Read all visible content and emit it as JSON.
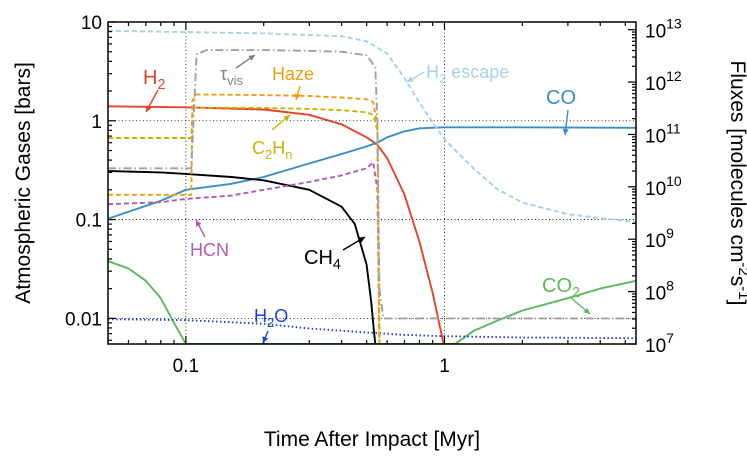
{
  "chart_data": {
    "type": "line",
    "xlabel": "Time After Impact [Myr]",
    "ylabel_left": "Atmospheric Gases [bars]",
    "ylabel_right": "Fluxes [molecules cm^-2 s^-1]",
    "x_scale": "log",
    "y_scale_left": "log",
    "y_scale_right": "log",
    "xlim": [
      0.05,
      5.5
    ],
    "ylim_left": [
      0.0055,
      10
    ],
    "ylim_right": [
      10000000.0,
      14000000000000.0
    ],
    "grid": "dotted at decades",
    "x_tick_labels": [
      "0.1",
      "1"
    ],
    "y_left_tick_labels": [
      "0.01",
      "0.1",
      "1",
      "10"
    ],
    "y_right_tick_labels": [
      "10^7",
      "10^8",
      "10^9",
      "10^10",
      "10^11",
      "10^12",
      "10^13"
    ],
    "series": [
      {
        "name": "H2",
        "label": "H₂",
        "axis": "left",
        "color": "#e8412a",
        "style": "solid",
        "x": [
          0.05,
          0.1,
          0.2,
          0.3,
          0.4,
          0.5,
          0.55,
          0.6,
          0.7,
          0.8,
          0.9,
          1.0
        ],
        "y": [
          1.4,
          1.37,
          1.3,
          1.15,
          0.92,
          0.68,
          0.57,
          0.42,
          0.18,
          0.06,
          0.018,
          0.005
        ]
      },
      {
        "name": "CO",
        "label": "CO",
        "axis": "left",
        "color": "#3b8dc4",
        "style": "solid",
        "x": [
          0.05,
          0.08,
          0.1,
          0.15,
          0.2,
          0.3,
          0.4,
          0.5,
          0.55,
          0.6,
          0.7,
          0.8,
          1.0,
          2.0,
          5.5
        ],
        "y": [
          0.102,
          0.155,
          0.2,
          0.23,
          0.27,
          0.37,
          0.46,
          0.55,
          0.6,
          0.68,
          0.78,
          0.84,
          0.86,
          0.86,
          0.85
        ]
      },
      {
        "name": "CH4",
        "label": "CH₄",
        "axis": "left",
        "color": "#000000",
        "style": "solid",
        "x": [
          0.05,
          0.08,
          0.1,
          0.15,
          0.2,
          0.3,
          0.4,
          0.45,
          0.5,
          0.52,
          0.535,
          0.54
        ],
        "y": [
          0.31,
          0.3,
          0.29,
          0.27,
          0.25,
          0.2,
          0.135,
          0.09,
          0.035,
          0.015,
          0.007,
          0.0055
        ]
      },
      {
        "name": "CO2",
        "label": "CO₂",
        "axis": "left",
        "color": "#5cb85c",
        "style": "solid",
        "x": [
          0.05,
          0.06,
          0.07,
          0.08,
          0.09,
          0.095,
          0.1,
          1.1,
          1.15,
          1.3,
          1.6,
          2.0,
          3.0,
          4.0,
          5.5
        ],
        "y": [
          0.038,
          0.032,
          0.024,
          0.016,
          0.009,
          0.007,
          0.0055,
          0.0055,
          0.006,
          0.0075,
          0.0095,
          0.012,
          0.016,
          0.02,
          0.024
        ]
      },
      {
        "name": "H2O",
        "label": "H₂O",
        "axis": "left",
        "color": "#1c3fd6",
        "style": "dotted",
        "x": [
          0.05,
          0.1,
          0.2,
          0.3,
          0.5,
          0.7,
          1.0,
          2.0,
          5.5
        ],
        "y": [
          0.0098,
          0.0096,
          0.0088,
          0.0079,
          0.0072,
          0.0068,
          0.0066,
          0.0064,
          0.0063
        ]
      },
      {
        "name": "HCN",
        "label": "HCN",
        "axis": "left",
        "color": "#b25ab8",
        "style": "dashed",
        "x": [
          0.05,
          0.08,
          0.1,
          0.15,
          0.2,
          0.3,
          0.4,
          0.5,
          0.53,
          0.55,
          0.56
        ],
        "y": [
          0.143,
          0.15,
          0.162,
          0.175,
          0.2,
          0.24,
          0.28,
          0.33,
          0.38,
          0.2,
          0.0055
        ]
      },
      {
        "name": "C2Hn",
        "label": "C₂Hₙ",
        "axis": "left",
        "color": "#c8b400",
        "style": "dashed",
        "x": [
          0.05,
          0.105,
          0.106,
          0.108,
          0.2,
          0.3,
          0.4,
          0.5,
          0.53,
          0.55,
          0.56
        ],
        "y": [
          0.67,
          0.67,
          1.2,
          1.36,
          1.35,
          1.32,
          1.28,
          1.22,
          1.15,
          0.8,
          0.0055
        ]
      },
      {
        "name": "Haze",
        "label": "Haze",
        "axis": "left",
        "color": "#f39c12",
        "style": "dashed",
        "x": [
          0.05,
          0.105,
          0.106,
          0.11,
          0.2,
          0.3,
          0.4,
          0.5,
          0.53,
          0.55,
          0.56
        ],
        "y": [
          0.178,
          0.178,
          1.6,
          1.85,
          1.82,
          1.78,
          1.72,
          1.65,
          1.55,
          0.9,
          0.0055
        ]
      },
      {
        "name": "tau_vis",
        "label": "τvis",
        "axis": "left",
        "color": "#a0a0a0",
        "style": "dashdot",
        "x": [
          0.05,
          0.105,
          0.11,
          0.12,
          0.2,
          0.3,
          0.4,
          0.5,
          0.54,
          0.55,
          0.56,
          0.58,
          5.5
        ],
        "y": [
          0.33,
          0.33,
          4.7,
          5.2,
          5.2,
          5.1,
          5.0,
          4.6,
          3.5,
          1.0,
          0.02,
          0.01,
          0.01
        ]
      },
      {
        "name": "H2 escape",
        "label": "H₂ escape",
        "axis": "right",
        "color": "#a8d0e8",
        "style": "dashed",
        "x": [
          0.05,
          0.2,
          0.4,
          0.5,
          0.6,
          0.7,
          0.8,
          1.0,
          1.3,
          1.6,
          2.0,
          3.0,
          5.5
        ],
        "y": [
          9500000000000.0,
          8500000000000.0,
          7500000000000.0,
          6000000000000.0,
          3500000000000.0,
          1200000000000.0,
          400000000000.0,
          80000000000.0,
          22000000000.0,
          9000000000.0,
          5000000000.0,
          3000000000.0,
          2100000000.0
        ]
      }
    ],
    "annotations": [
      {
        "id": "tau",
        "text": "τ",
        "sub": "vis",
        "color": "#808080"
      },
      {
        "id": "haze",
        "text": "Haze",
        "sub": "",
        "color": "#f39c12"
      },
      {
        "id": "h2esc",
        "text": "H",
        "sub": "2",
        "post": " escape",
        "color": "#a8d0e8"
      },
      {
        "id": "h2",
        "text": "H",
        "sub": "2",
        "color": "#e8412a"
      },
      {
        "id": "co",
        "text": "CO",
        "sub": "",
        "color": "#3b8dc4"
      },
      {
        "id": "c2hn",
        "text": "C",
        "sub": "2",
        "post": "H",
        "sub2": "n",
        "color": "#c8b400"
      },
      {
        "id": "ch4",
        "text": "CH",
        "sub": "4",
        "color": "#000000"
      },
      {
        "id": "hcn",
        "text": "HCN",
        "sub": "",
        "color": "#b25ab8"
      },
      {
        "id": "co2",
        "text": "CO",
        "sub": "2",
        "color": "#5cb85c"
      },
      {
        "id": "h2o",
        "text": "H",
        "sub": "2",
        "post": "O",
        "color": "#1c3fd6"
      }
    ]
  }
}
